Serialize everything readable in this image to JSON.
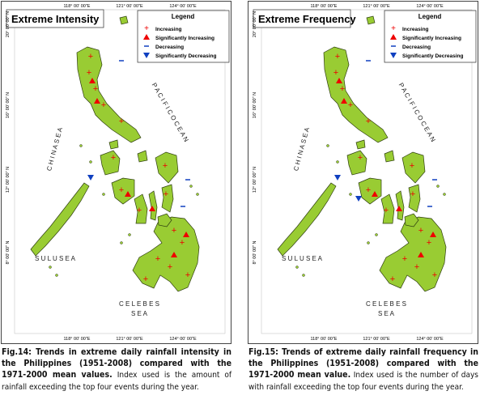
{
  "panels": [
    {
      "title": "Extreme Intensity",
      "legend": {
        "title": "Legend",
        "items": [
          "Increasing",
          "Significantly Increasing",
          "Decreasing",
          "Significantly Decreasing"
        ]
      },
      "lon_labels": [
        "118° 00' 00\"E",
        "121° 00' 00\"E",
        "124° 00' 00\"E"
      ],
      "lat_labels": [
        "20° 00' 00\" N",
        "16° 00' 00\" N",
        "12° 00' 00\" N",
        "8° 00' 00\" N"
      ],
      "seas": {
        "china": "C H I N A   S E A",
        "pacific": "P A C I F I C   O C E A N",
        "sulu": "S U L U   S E A",
        "celebes_1": "C E L E B E S",
        "celebes_2": "S E A"
      },
      "caption": {
        "bold": "Fig.14: Trends in extreme daily rainfall intensity in the Philippines (1951-2008) compared with the 1971-2000 mean values.",
        "text": "Index used is the amount of rainfall exceeding the top four events during the year."
      }
    },
    {
      "title": "Extreme Frequency",
      "legend": {
        "title": "Legend",
        "items": [
          "Increasing",
          "Significantly Increasing",
          "Decreasing",
          "Significantly Decreasing"
        ]
      },
      "lon_labels": [
        "118° 00' 00\"E",
        "121° 00' 00\"E",
        "124° 00' 00\"E"
      ],
      "lat_labels": [
        "20° 00' 00\" N",
        "16° 00' 00\" N",
        "12° 00' 00\" N",
        "8° 00' 00\" N"
      ],
      "seas": {
        "china": "C H I N A   S E A",
        "pacific": "P A C I F I C   O C E A N",
        "sulu": "S U L U   S E A",
        "celebes_1": "C E L E B E S",
        "celebes_2": "S E A"
      },
      "caption": {
        "bold": "Fig.15: Trends of extreme daily rainfall frequency in the Philippines (1951-2008) compared with the 1971-2000 mean value.",
        "text": "Index used is the number of days with rainfall exceeding the top four events during the year."
      }
    }
  ]
}
